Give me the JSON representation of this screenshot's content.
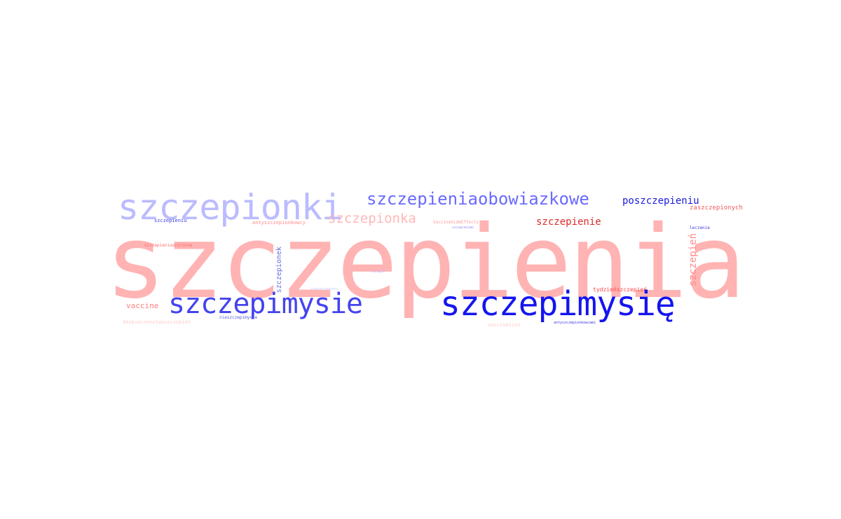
{
  "cloud": {
    "words": [
      {
        "text": "szczepienia",
        "color": "#ffb3b3"
      },
      {
        "text": "szczepionki",
        "color": "#bbbbff"
      },
      {
        "text": "szczepieniaobowiazkowe",
        "color": "#6a6aff"
      },
      {
        "text": "poszczepieniu",
        "color": "#1a1add"
      },
      {
        "text": "zaszczepionych",
        "color": "#ee5a5a"
      },
      {
        "text": "szczepionka",
        "color": "#ffb7b7"
      },
      {
        "text": "szczepienie",
        "color": "#dd2a2a"
      },
      {
        "text": "antyszczepionkowcy",
        "color": "#ff8a8a"
      },
      {
        "text": "szczepieniu",
        "color": "#3a3add"
      },
      {
        "text": "VaccineSideEffects",
        "color": "#ff9a9a"
      },
      {
        "text": "leczenie",
        "color": "#3a3add"
      },
      {
        "text": "szczepieniaschronne",
        "color": "#ff6a6a"
      },
      {
        "text": "szczepionek",
        "color": "#6a6add"
      },
      {
        "text": "szczepień",
        "color": "#ff8a8a"
      },
      {
        "text": "szczepimysie",
        "color": "#4444ee"
      },
      {
        "text": "szczepimysię",
        "color": "#1515ee"
      },
      {
        "text": "vaccine",
        "color": "#ff8080"
      },
      {
        "text": "tydzieńszczepień",
        "color": "#ff4444"
      },
      {
        "text": "bezpieczenstwoszczepien",
        "color": "#ffcaca"
      },
      {
        "text": "nieszczepimysie",
        "color": "#5a5add"
      },
      {
        "text": "vaccination",
        "color": "#ffcaca"
      },
      {
        "text": "antyszczepionkowcami",
        "color": "#3a3add"
      },
      {
        "text": "nieszczepieni",
        "color": "#c8c8ff"
      },
      {
        "text": "szczepić",
        "color": "#b0b0ff"
      },
      {
        "text": "szczepieniami",
        "color": "#7a7aee"
      }
    ]
  }
}
